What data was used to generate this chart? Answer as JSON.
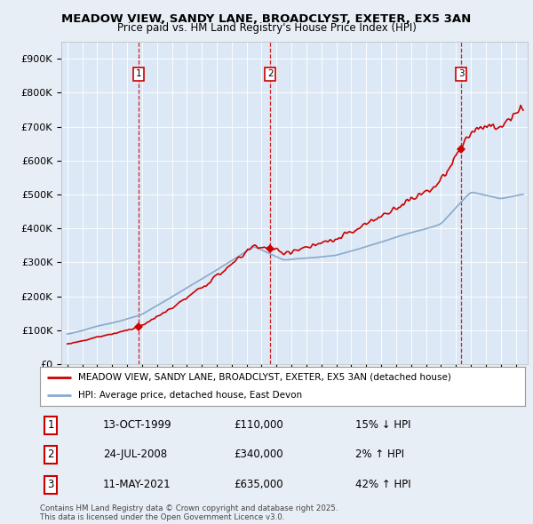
{
  "title": "MEADOW VIEW, SANDY LANE, BROADCLYST, EXETER, EX5 3AN",
  "subtitle": "Price paid vs. HM Land Registry's House Price Index (HPI)",
  "ylim": [
    0,
    950000
  ],
  "yticks": [
    0,
    100000,
    200000,
    300000,
    400000,
    500000,
    600000,
    700000,
    800000,
    900000
  ],
  "ytick_labels": [
    "£0",
    "£100K",
    "£200K",
    "£300K",
    "£400K",
    "£500K",
    "£600K",
    "£700K",
    "£800K",
    "£900K"
  ],
  "background_color": "#e8eef5",
  "plot_bg_color": "#dce8f5",
  "sale1_date": 1999.79,
  "sale1_price": 110000,
  "sale2_date": 2008.58,
  "sale2_price": 340000,
  "sale3_date": 2021.36,
  "sale3_price": 635000,
  "legend_house_label": "MEADOW VIEW, SANDY LANE, BROADCLYST, EXETER, EX5 3AN (detached house)",
  "legend_hpi_label": "HPI: Average price, detached house, East Devon",
  "footer": "Contains HM Land Registry data © Crown copyright and database right 2025.\nThis data is licensed under the Open Government Licence v3.0.",
  "house_color": "#cc0000",
  "hpi_color": "#88aacc",
  "vline_color": "#cc0000",
  "table_rows": [
    [
      "1",
      "13-OCT-1999",
      "£110,000",
      "15% ↓ HPI"
    ],
    [
      "2",
      "24-JUL-2008",
      "£340,000",
      "2% ↑ HPI"
    ],
    [
      "3",
      "11-MAY-2021",
      "£635,000",
      "42% ↑ HPI"
    ]
  ],
  "xstart": 1995,
  "xend": 2025
}
